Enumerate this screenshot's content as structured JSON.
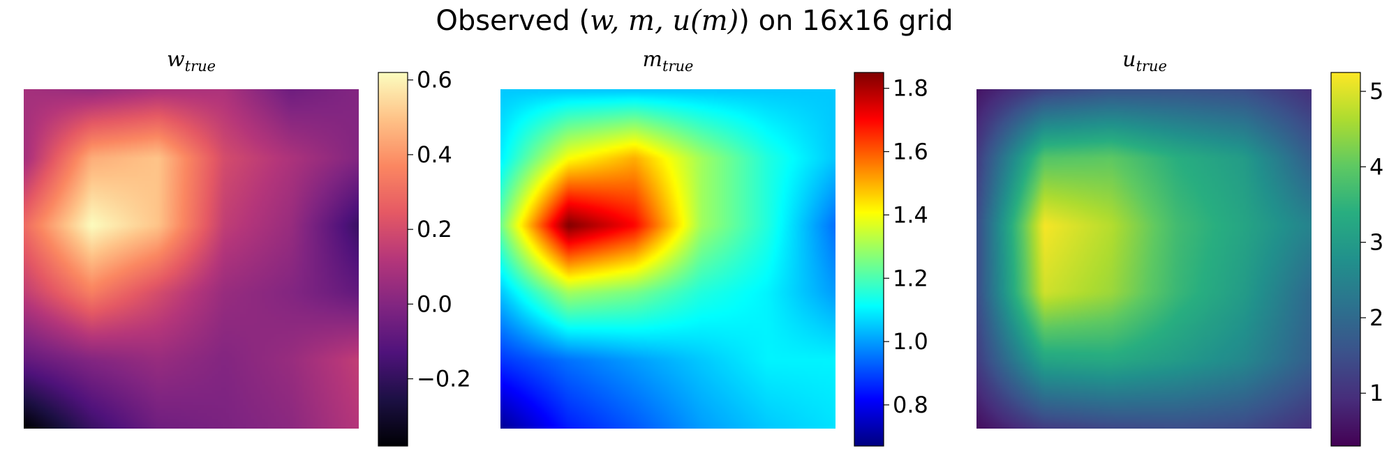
{
  "figure": {
    "title_prefix": "Observed (",
    "title_math": "w, m, u(m)",
    "title_suffix": ") on 16x16 grid"
  },
  "chart_data": [
    {
      "type": "heatmap",
      "title_base": "w",
      "title_sub": "true",
      "colormap": "magma",
      "grid": false,
      "clim": [
        -0.38,
        0.62
      ],
      "colorbar": {
        "ticks": [
          -0.2,
          0.0,
          0.2,
          0.4,
          0.6
        ],
        "tick_labels": [
          "−0.2",
          "0.0",
          "0.2",
          "0.4",
          "0.6"
        ]
      },
      "x": [
        0.0,
        0.2,
        0.4,
        0.6,
        0.8,
        1.0
      ],
      "y": [
        0.0,
        0.2,
        0.4,
        0.6,
        0.8,
        1.0
      ],
      "z": [
        [
          -0.38,
          -0.18,
          -0.05,
          -0.02,
          0.02,
          0.12
        ],
        [
          -0.08,
          0.0,
          0.05,
          0.0,
          0.05,
          0.15
        ],
        [
          0.15,
          0.35,
          0.2,
          0.05,
          0.0,
          -0.08
        ],
        [
          0.3,
          0.62,
          0.5,
          0.15,
          0.05,
          -0.18
        ],
        [
          0.08,
          0.45,
          0.5,
          0.2,
          0.1,
          0.0
        ],
        [
          0.08,
          0.05,
          0.1,
          0.1,
          -0.05,
          0.0
        ]
      ]
    },
    {
      "type": "heatmap",
      "title_base": "m",
      "title_sub": "true",
      "colormap": "jet",
      "grid": false,
      "clim": [
        0.67,
        1.85
      ],
      "colorbar": {
        "ticks": [
          0.8,
          1.0,
          1.2,
          1.4,
          1.6,
          1.8
        ],
        "tick_labels": [
          "0.8",
          "1.0",
          "1.2",
          "1.4",
          "1.6",
          "1.8"
        ]
      },
      "x": [
        0.0,
        0.2,
        0.4,
        0.6,
        0.8,
        1.0
      ],
      "y": [
        0.0,
        0.2,
        0.4,
        0.6,
        0.8,
        1.0
      ],
      "z": [
        [
          0.7,
          0.85,
          0.92,
          1.0,
          1.05,
          1.08
        ],
        [
          0.88,
          0.95,
          1.0,
          1.05,
          1.1,
          1.1
        ],
        [
          1.05,
          1.3,
          1.25,
          1.15,
          1.1,
          1.0
        ],
        [
          1.25,
          1.85,
          1.7,
          1.3,
          1.15,
          0.95
        ],
        [
          1.1,
          1.4,
          1.5,
          1.3,
          1.15,
          1.05
        ],
        [
          1.05,
          1.05,
          1.05,
          1.05,
          1.05,
          1.05
        ]
      ]
    },
    {
      "type": "heatmap",
      "title_base": "u",
      "title_sub": "true",
      "colormap": "viridis",
      "grid": false,
      "clim": [
        0.3,
        5.25
      ],
      "colorbar": {
        "ticks": [
          1,
          2,
          3,
          4,
          5
        ],
        "tick_labels": [
          "1",
          "2",
          "3",
          "4",
          "5"
        ]
      },
      "x": [
        0.0,
        0.2,
        0.4,
        0.6,
        0.8,
        1.0
      ],
      "y": [
        0.0,
        0.2,
        0.4,
        0.6,
        0.8,
        1.0
      ],
      "z": [
        [
          0.5,
          1.2,
          1.4,
          1.5,
          1.4,
          1.0
        ],
        [
          1.2,
          3.2,
          3.3,
          3.0,
          2.6,
          1.8
        ],
        [
          1.5,
          4.9,
          4.5,
          3.6,
          3.0,
          2.0
        ],
        [
          1.5,
          5.2,
          4.7,
          3.7,
          3.2,
          2.5
        ],
        [
          1.2,
          3.9,
          4.0,
          3.4,
          3.0,
          1.8
        ],
        [
          0.6,
          1.3,
          1.6,
          1.6,
          1.5,
          1.0
        ]
      ]
    }
  ]
}
